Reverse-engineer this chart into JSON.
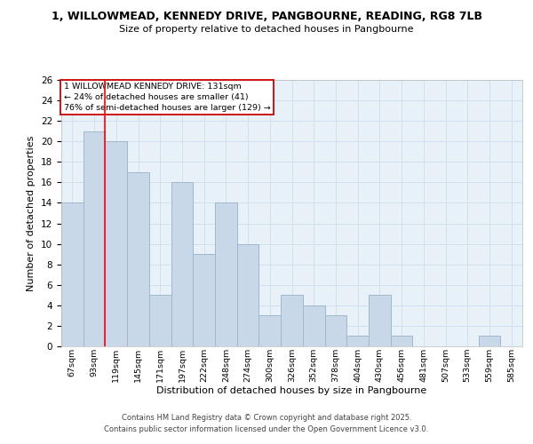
{
  "title_line1": "1, WILLOWMEAD, KENNEDY DRIVE, PANGBOURNE, READING, RG8 7LB",
  "title_line2": "Size of property relative to detached houses in Pangbourne",
  "xlabel": "Distribution of detached houses by size in Pangbourne",
  "ylabel": "Number of detached properties",
  "bar_labels": [
    "67sqm",
    "93sqm",
    "119sqm",
    "145sqm",
    "171sqm",
    "197sqm",
    "222sqm",
    "248sqm",
    "274sqm",
    "300sqm",
    "326sqm",
    "352sqm",
    "378sqm",
    "404sqm",
    "430sqm",
    "456sqm",
    "481sqm",
    "507sqm",
    "533sqm",
    "559sqm",
    "585sqm"
  ],
  "bar_values": [
    14,
    21,
    20,
    17,
    5,
    16,
    9,
    14,
    10,
    3,
    5,
    4,
    3,
    1,
    5,
    1,
    0,
    0,
    0,
    1,
    0
  ],
  "bar_color": "#c8d8e8",
  "bar_edge_color": "#a0b8cc",
  "grid_color": "#d0e0f0",
  "red_line_index": 2,
  "ylim": [
    0,
    26
  ],
  "yticks": [
    0,
    2,
    4,
    6,
    8,
    10,
    12,
    14,
    16,
    18,
    20,
    22,
    24,
    26
  ],
  "annotation_text": "1 WILLOWMEAD KENNEDY DRIVE: 131sqm\n← 24% of detached houses are smaller (41)\n76% of semi-detached houses are larger (129) →",
  "annotation_box_color": "#ffffff",
  "annotation_box_edge": "#cc0000",
  "footer_line1": "Contains HM Land Registry data © Crown copyright and database right 2025.",
  "footer_line2": "Contains public sector information licensed under the Open Government Licence v3.0.",
  "bg_color": "#ffffff",
  "plot_bg_color": "#e8f0f8"
}
